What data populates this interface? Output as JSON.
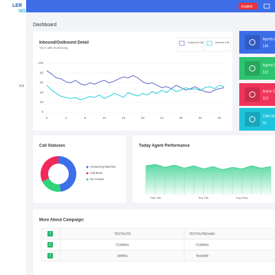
{
  "sidebar": {
    "logo_top": "LER",
    "logo_bottom": "NG",
    "menu_item": "trol"
  },
  "header": {
    "language": "English"
  },
  "page_title": "Dashboard",
  "stat_cards": [
    {
      "label": "Agents A",
      "value": 146,
      "color": "#3b6de6"
    },
    {
      "label": "Agents B",
      "value": 122,
      "color": "#2ec46f"
    },
    {
      "label": "Active C",
      "value": 113,
      "color": "#f0355b"
    },
    {
      "label": "Calls Re",
      "value": 92,
      "color": "#1ec4dc"
    }
  ],
  "chart_data": [
    {
      "type": "line",
      "title": "Inbound/Outbound Detail",
      "subtitle": "Your calls monitoring",
      "x": [
        0,
        1,
        2,
        3,
        4,
        5,
        6,
        7,
        8,
        9,
        10,
        11,
        12,
        13,
        14,
        15,
        16,
        17,
        18,
        19,
        20,
        21,
        22,
        23,
        24,
        25,
        26,
        27,
        28,
        29,
        30,
        31,
        32,
        33,
        34,
        35,
        36,
        37
      ],
      "xlim": [
        0,
        37
      ],
      "xticks": [
        0,
        4,
        8,
        12,
        16,
        20,
        24,
        28,
        32,
        36
      ],
      "ylim": [
        0,
        100
      ],
      "yticks": [
        0,
        20,
        40,
        60,
        80,
        100
      ],
      "grid": true,
      "series": [
        {
          "name": "Outbound Call",
          "color": "#6b6ec9",
          "values": [
            85,
            78,
            70,
            68,
            62,
            60,
            65,
            58,
            55,
            60,
            57,
            62,
            65,
            60,
            63,
            68,
            72,
            70,
            75,
            70,
            62,
            58,
            60,
            55,
            50,
            52,
            48,
            55,
            50,
            45,
            48,
            52,
            46,
            42,
            40,
            45,
            48,
            50
          ]
        },
        {
          "name": "Inbound Call",
          "color": "#2fd1de",
          "values": [
            55,
            45,
            38,
            32,
            30,
            28,
            30,
            25,
            28,
            32,
            30,
            35,
            28,
            32,
            38,
            35,
            30,
            40,
            36,
            33,
            38,
            35,
            42,
            38,
            45,
            40,
            48,
            42,
            45,
            50,
            46,
            48,
            44,
            50,
            52,
            48,
            55,
            52
          ]
        }
      ]
    },
    {
      "type": "pie",
      "title": "Call Statuses",
      "categories": [
        "Answering Machine",
        "Call Back",
        "No Answer"
      ],
      "values": [
        48,
        32,
        20
      ],
      "colors": [
        "#3f6fe8",
        "#f2295b",
        "#2ed47a"
      ]
    },
    {
      "type": "area",
      "title": "Today Agent Performance",
      "color": "#2ecf8a",
      "categories": [
        null,
        "Total Talk",
        null,
        null,
        null,
        null,
        "Avg Talk",
        null,
        null,
        null,
        "Avg Wrap",
        null,
        null,
        null
      ],
      "values": [
        38,
        40,
        36,
        39,
        35,
        38,
        34,
        37,
        33,
        36,
        34,
        38,
        35,
        37
      ],
      "ylim": [
        0,
        50
      ]
    }
  ],
  "campaign": {
    "title": "More About Campaign:",
    "rows": [
      [
        "T",
        "TESTOUTB",
        "TESTOUTBOUND"
      ],
      [
        "C",
        "CC90001",
        "CC90001"
      ],
      [
        "T",
        "200001",
        "Test1000"
      ]
    ]
  }
}
